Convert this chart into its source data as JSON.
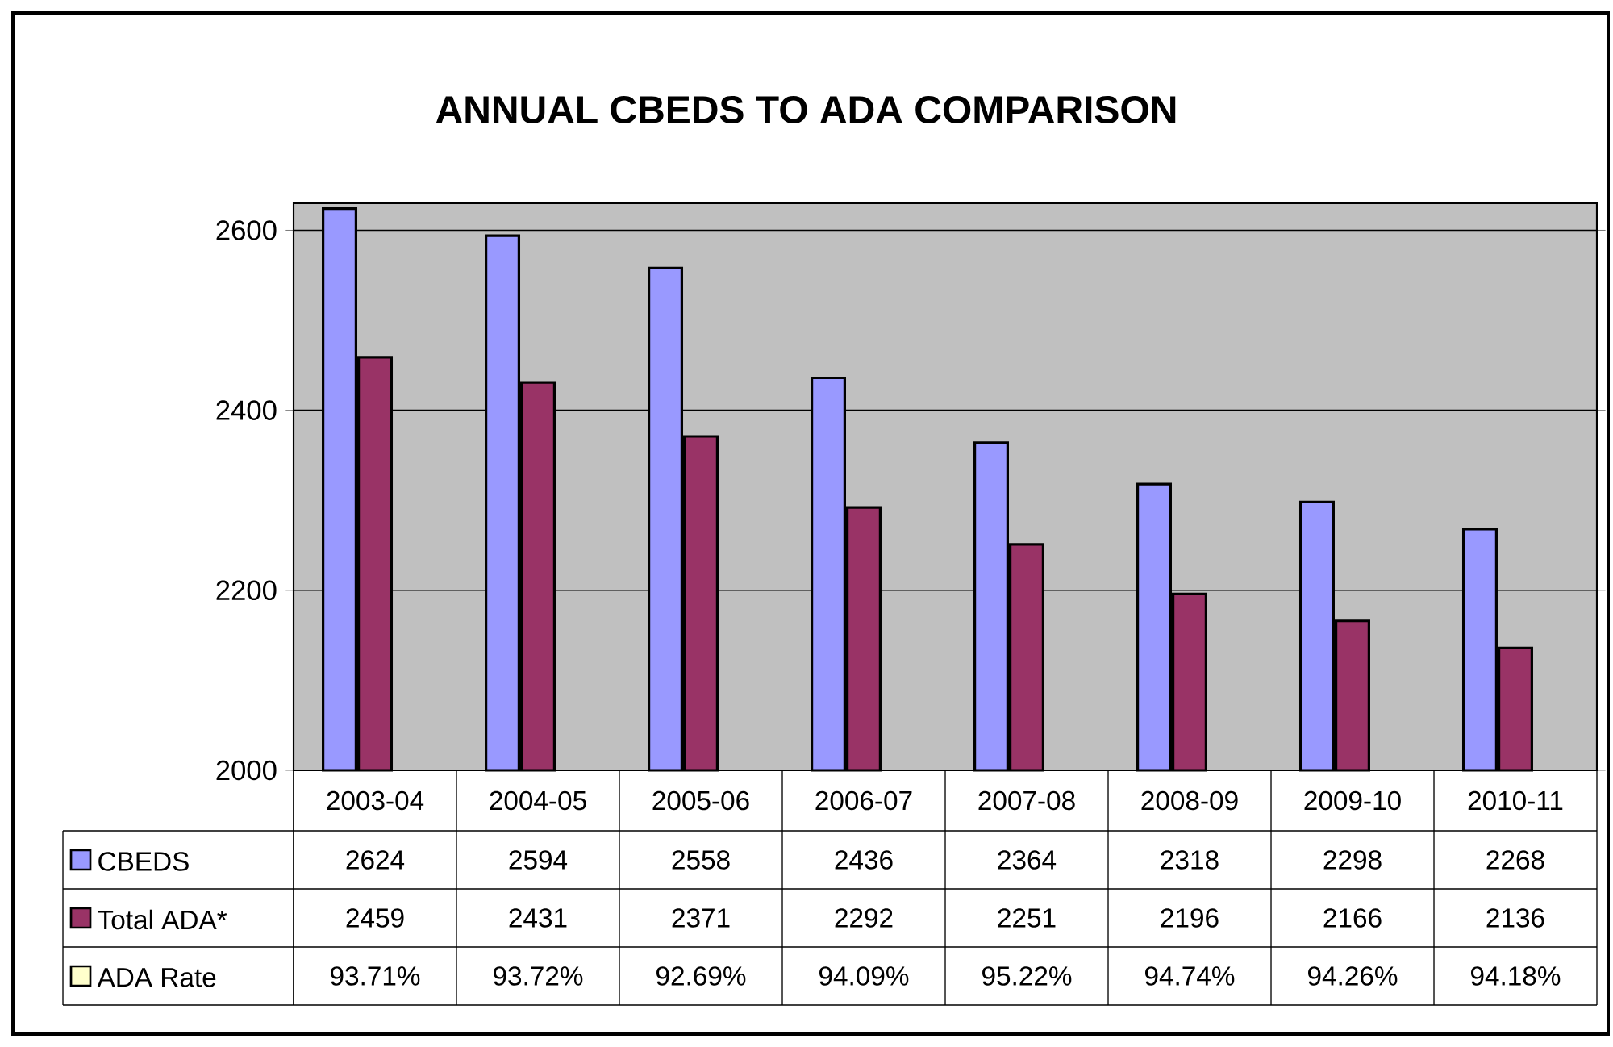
{
  "chart_data": {
    "type": "bar",
    "title": "ANNUAL CBEDS TO ADA COMPARISON",
    "categories": [
      "2003-04",
      "2004-05",
      "2005-06",
      "2006-07",
      "2007-08",
      "2008-09",
      "2009-10",
      "2010-11"
    ],
    "series": [
      {
        "name": "CBEDS",
        "color": "#9999ff",
        "values": [
          2624,
          2594,
          2558,
          2436,
          2364,
          2318,
          2298,
          2268
        ]
      },
      {
        "name": "Total ADA*",
        "color": "#993366",
        "values": [
          2459,
          2431,
          2371,
          2292,
          2251,
          2196,
          2166,
          2136
        ]
      },
      {
        "name": "ADA Rate",
        "color": "#ffffcc",
        "values": [
          null,
          null,
          null,
          null,
          null,
          null,
          null,
          null
        ],
        "value_labels": [
          "93.71%",
          "93.72%",
          "92.69%",
          "94.09%",
          "95.22%",
          "94.74%",
          "94.26%",
          "94.18%"
        ]
      }
    ],
    "ylim": [
      2000,
      2630
    ],
    "yticks": [
      2000,
      2200,
      2400,
      2600
    ],
    "grid": "y",
    "legend": "bottom",
    "data_labels": true
  }
}
